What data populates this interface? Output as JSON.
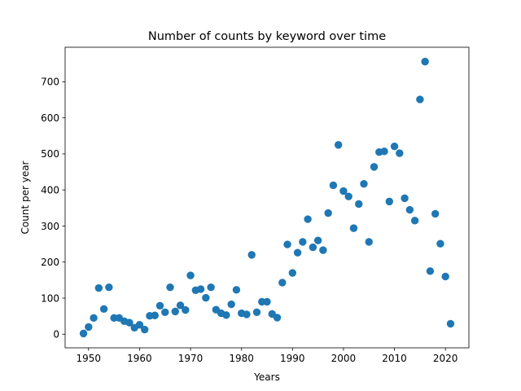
{
  "chart_data": {
    "type": "scatter",
    "title": "Number of counts by keyword over time",
    "xlabel": "Years",
    "ylabel": "Count per year",
    "xlim": [
      1945.4,
      2024.6
    ],
    "ylim": [
      -37.8,
      795.8
    ],
    "xticks": [
      1950,
      1960,
      1970,
      1980,
      1990,
      2000,
      2010,
      2020
    ],
    "yticks": [
      0,
      100,
      200,
      300,
      400,
      500,
      600,
      700
    ],
    "grid": false,
    "marker_color": "#1f77b4",
    "points": [
      [
        1949,
        2
      ],
      [
        1950,
        20
      ],
      [
        1951,
        45
      ],
      [
        1952,
        128
      ],
      [
        1953,
        70
      ],
      [
        1954,
        130
      ],
      [
        1955,
        45
      ],
      [
        1956,
        45
      ],
      [
        1957,
        36
      ],
      [
        1958,
        32
      ],
      [
        1959,
        18
      ],
      [
        1960,
        26
      ],
      [
        1961,
        13
      ],
      [
        1962,
        51
      ],
      [
        1963,
        52
      ],
      [
        1964,
        79
      ],
      [
        1965,
        61
      ],
      [
        1966,
        130
      ],
      [
        1967,
        63
      ],
      [
        1968,
        80
      ],
      [
        1969,
        67
      ],
      [
        1970,
        163
      ],
      [
        1971,
        122
      ],
      [
        1972,
        125
      ],
      [
        1973,
        101
      ],
      [
        1974,
        130
      ],
      [
        1975,
        68
      ],
      [
        1976,
        58
      ],
      [
        1977,
        53
      ],
      [
        1978,
        83
      ],
      [
        1979,
        123
      ],
      [
        1980,
        58
      ],
      [
        1981,
        55
      ],
      [
        1982,
        220
      ],
      [
        1983,
        61
      ],
      [
        1984,
        90
      ],
      [
        1985,
        90
      ],
      [
        1986,
        56
      ],
      [
        1987,
        46
      ],
      [
        1988,
        143
      ],
      [
        1989,
        249
      ],
      [
        1990,
        170
      ],
      [
        1991,
        226
      ],
      [
        1992,
        256
      ],
      [
        1993,
        319
      ],
      [
        1994,
        241
      ],
      [
        1995,
        260
      ],
      [
        1996,
        233
      ],
      [
        1997,
        336
      ],
      [
        1998,
        413
      ],
      [
        1999,
        525
      ],
      [
        2000,
        397
      ],
      [
        2001,
        382
      ],
      [
        2002,
        294
      ],
      [
        2003,
        361
      ],
      [
        2004,
        417
      ],
      [
        2005,
        256
      ],
      [
        2006,
        464
      ],
      [
        2007,
        505
      ],
      [
        2008,
        507
      ],
      [
        2009,
        368
      ],
      [
        2010,
        521
      ],
      [
        2011,
        502
      ],
      [
        2012,
        377
      ],
      [
        2013,
        345
      ],
      [
        2014,
        315
      ],
      [
        2015,
        651
      ],
      [
        2016,
        756
      ],
      [
        2017,
        175
      ],
      [
        2018,
        334
      ],
      [
        2019,
        251
      ],
      [
        2020,
        160
      ],
      [
        2021,
        29
      ]
    ]
  }
}
